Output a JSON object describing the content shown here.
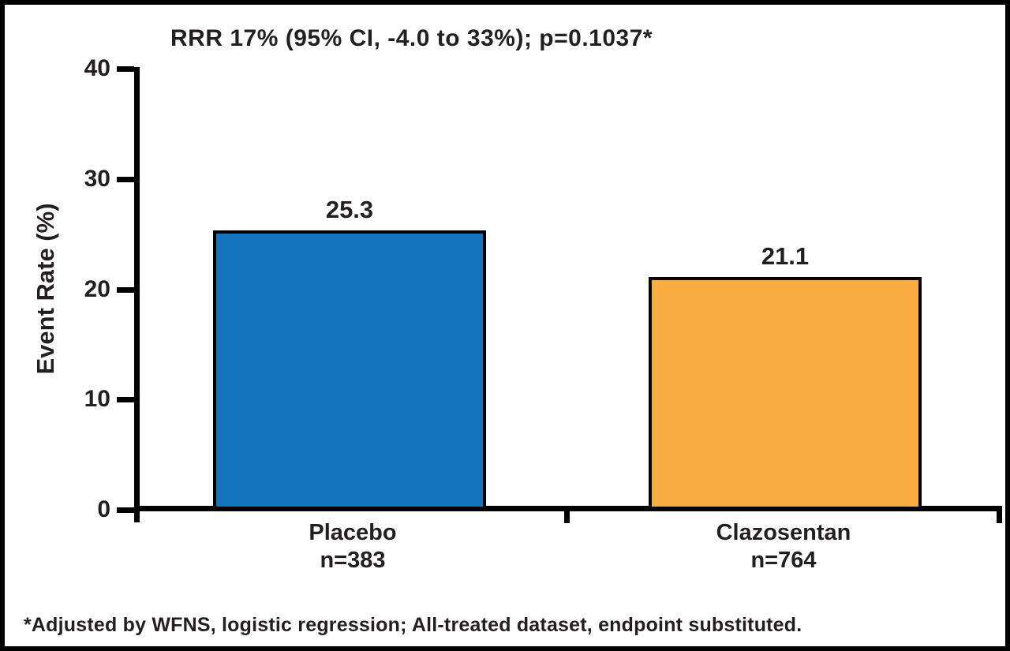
{
  "chart_data": {
    "type": "bar",
    "title": "RRR 17% (95% CI, -4.0 to 33%); p=0.1037*",
    "ylabel": "Event Rate (%)",
    "xlabel": "",
    "ylim": [
      0,
      40
    ],
    "yticks": [
      0,
      10,
      20,
      30,
      40
    ],
    "categories": [
      "Placebo",
      "Clazosentan"
    ],
    "category_sublabels": [
      "n=383",
      "n=764"
    ],
    "values": [
      25.3,
      21.1
    ],
    "series": [
      {
        "name": "Event Rate (%)",
        "values": [
          25.3,
          21.1
        ]
      }
    ],
    "bar_colors": [
      "#1575BC",
      "#FAAD42"
    ],
    "bar_border_color": "#000000",
    "grid": false,
    "legend": "none",
    "footnote": "*Adjusted by WFNS, logistic regression; All-treated dataset, endpoint substituted."
  },
  "colors": {
    "placebo_blue": "#1575BC",
    "clazosentan_orange": "#FAAD42",
    "axis_black": "#000000",
    "text_dark": "#231F20"
  }
}
